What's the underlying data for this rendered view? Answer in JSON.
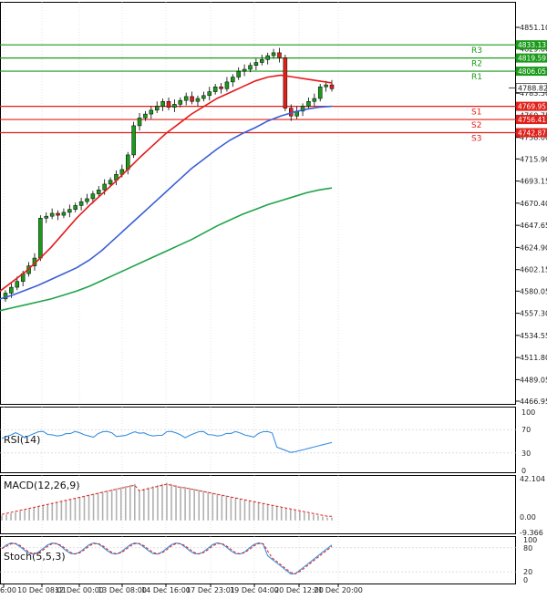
{
  "chart_data": {
    "type": "candlestick",
    "symbol_price_axis_ticks": [
      4851.1,
      4829.0,
      4806.05,
      4783.5,
      4760.75,
      4738.0,
      4715.9,
      4693.15,
      4670.4,
      4647.65,
      4624.9,
      4602.15,
      4580.05,
      4557.3,
      4534.55,
      4511.8,
      4489.05,
      4466.95
    ],
    "x_tick_labels": [
      "6:00",
      "10 Dec 08:01",
      "12 Dec 00:00",
      "13 Dec 08:00",
      "14 Dec 16:00",
      "17 Dec 23:01",
      "19 Dec 04:00",
      "20 Dec 12:00",
      "21 Dec 20:00"
    ],
    "current_price": 4788.82,
    "levels": {
      "resistance": [
        {
          "name": "R3",
          "value": 4833.13
        },
        {
          "name": "R2",
          "value": 4819.59
        },
        {
          "name": "R1",
          "value": 4806.05
        }
      ],
      "support": [
        {
          "name": "S1",
          "value": 4769.95
        },
        {
          "name": "S2",
          "value": 4756.41
        },
        {
          "name": "S3",
          "value": 4742.87
        }
      ]
    },
    "candles_close": [
      4578,
      4584,
      4590,
      4598,
      4606,
      4614,
      4655,
      4657,
      4660,
      4658,
      4661,
      4664,
      4668,
      4672,
      4675,
      4680,
      4684,
      4690,
      4694,
      4700,
      4705,
      4720,
      4750,
      4758,
      4762,
      4766,
      4770,
      4775,
      4769,
      4772,
      4776,
      4780,
      4775,
      4778,
      4781,
      4785,
      4790,
      4788,
      4795,
      4800,
      4806,
      4808,
      4812,
      4815,
      4818,
      4822,
      4825,
      4820,
      4768,
      4760,
      4765,
      4770,
      4775,
      4778,
      4790,
      4792,
      4788
    ],
    "moving_averages": [
      {
        "color": "#e41b1b",
        "values": [
          4580,
          4590,
          4600,
          4612,
          4625,
          4640,
          4655,
          4668,
          4680,
          4692,
          4705,
          4718,
          4730,
          4742,
          4752,
          4762,
          4770,
          4778,
          4784,
          4790,
          4796,
          4800,
          4802,
          4800,
          4798,
          4796,
          4794
        ]
      },
      {
        "color": "#3b5fd6",
        "values": [
          4572,
          4576,
          4581,
          4586,
          4592,
          4598,
          4604,
          4612,
          4622,
          4634,
          4646,
          4658,
          4670,
          4682,
          4694,
          4706,
          4716,
          4726,
          4735,
          4742,
          4748,
          4755,
          4760,
          4764,
          4767,
          4769,
          4770
        ]
      },
      {
        "color": "#1fa34a",
        "values": [
          4560,
          4563,
          4566,
          4569,
          4572,
          4576,
          4580,
          4585,
          4591,
          4597,
          4603,
          4609,
          4615,
          4621,
          4627,
          4633,
          4640,
          4647,
          4653,
          4659,
          4664,
          4669,
          4673,
          4677,
          4681,
          4684,
          4686
        ]
      }
    ],
    "indicators": {
      "rsi": {
        "label": "RSI(14)",
        "ticks": [
          100,
          70,
          30,
          0
        ]
      },
      "macd": {
        "label": "MACD(12,26,9)",
        "ticks": [
          "42.104",
          "0.00",
          "-9.366"
        ]
      },
      "stoch": {
        "label": "Stoch(5,5,3)",
        "ticks": [
          100,
          80,
          20,
          0
        ]
      }
    }
  },
  "colors": {
    "resistance": "#1a9a1a",
    "support": "#e0201a",
    "candle_bull": "#1a9a1a",
    "candle_bear": "#e0201a",
    "grid": "#c8c8c8",
    "axis": "#000000",
    "rsi_line": "#3b8fe0",
    "macd_hist": "#b0b0b0",
    "macd_signal": "#e0201a",
    "stoch_main": "#3b8fe0",
    "stoch_signal": "#e0201a"
  }
}
